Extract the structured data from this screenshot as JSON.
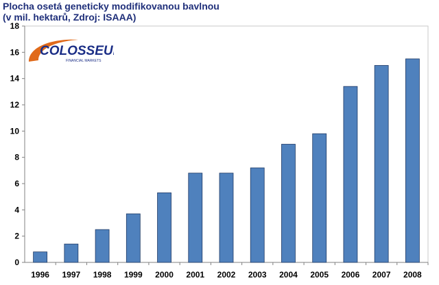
{
  "title_line1": "Plocha osetá geneticky modifikovanou bavlnou",
  "title_line2": "(v mil. hektarů, Zdroj: ISAAA)",
  "logo": {
    "name": "COLOSSEUM",
    "tagline": "FINANCIAL MARKETS",
    "colors": {
      "swoosh": "#e06a1b",
      "text": "#1b2e86"
    }
  },
  "chart_data": {
    "type": "bar",
    "title": "Plocha osetá geneticky modifikovanou bavlnou (v mil. hektarů, Zdroj: ISAAA)",
    "categories": [
      "1996",
      "1997",
      "1998",
      "1999",
      "2000",
      "2001",
      "2002",
      "2003",
      "2004",
      "2005",
      "2006",
      "2007",
      "2008"
    ],
    "values": [
      0.8,
      1.4,
      2.5,
      3.7,
      5.3,
      6.8,
      6.8,
      7.2,
      9.0,
      9.8,
      13.4,
      15.0,
      15.5
    ],
    "ylim": [
      0,
      18
    ],
    "yticks": [
      0,
      2,
      4,
      6,
      8,
      10,
      12,
      14,
      16,
      18
    ],
    "grid": false,
    "bar_color": "#4f81bd"
  }
}
